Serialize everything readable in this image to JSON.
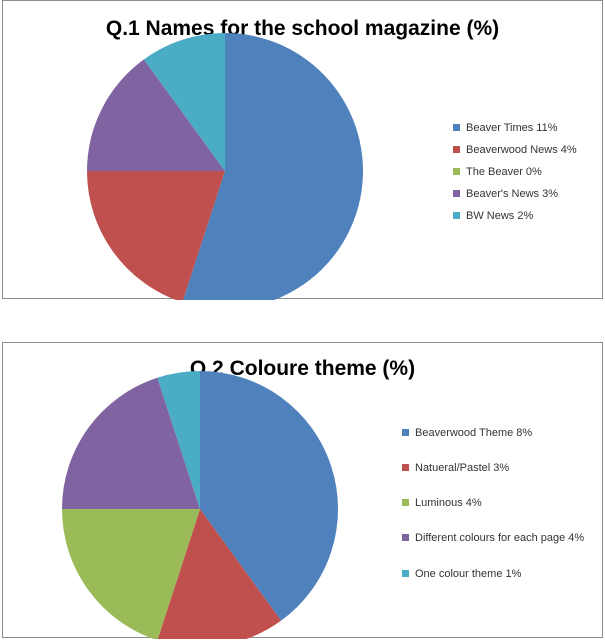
{
  "colors": [
    "#4F81BD",
    "#C0504D",
    "#9BBB59",
    "#8064A2",
    "#4BACC6"
  ],
  "chart_data": [
    {
      "type": "pie",
      "title": "Q.1 Names for the school magazine (%)",
      "categories": [
        "Beaver Times 11%",
        "Beaverwood News 4%",
        "The Beaver 0%",
        "Beaver's News 3%",
        "BW News  2%"
      ],
      "values": [
        11,
        4,
        0,
        3,
        2
      ],
      "legend_position": "right"
    },
    {
      "type": "pie",
      "title": "Q.2 Coloure theme (%)",
      "categories": [
        "Beaverwood Theme 8%",
        "Natueral/Pastel 3%",
        "Luminous 4%",
        "Different colours for each page 4%",
        "One colour theme 1%"
      ],
      "values": [
        8,
        3,
        4,
        4,
        1
      ],
      "legend_position": "right"
    }
  ]
}
